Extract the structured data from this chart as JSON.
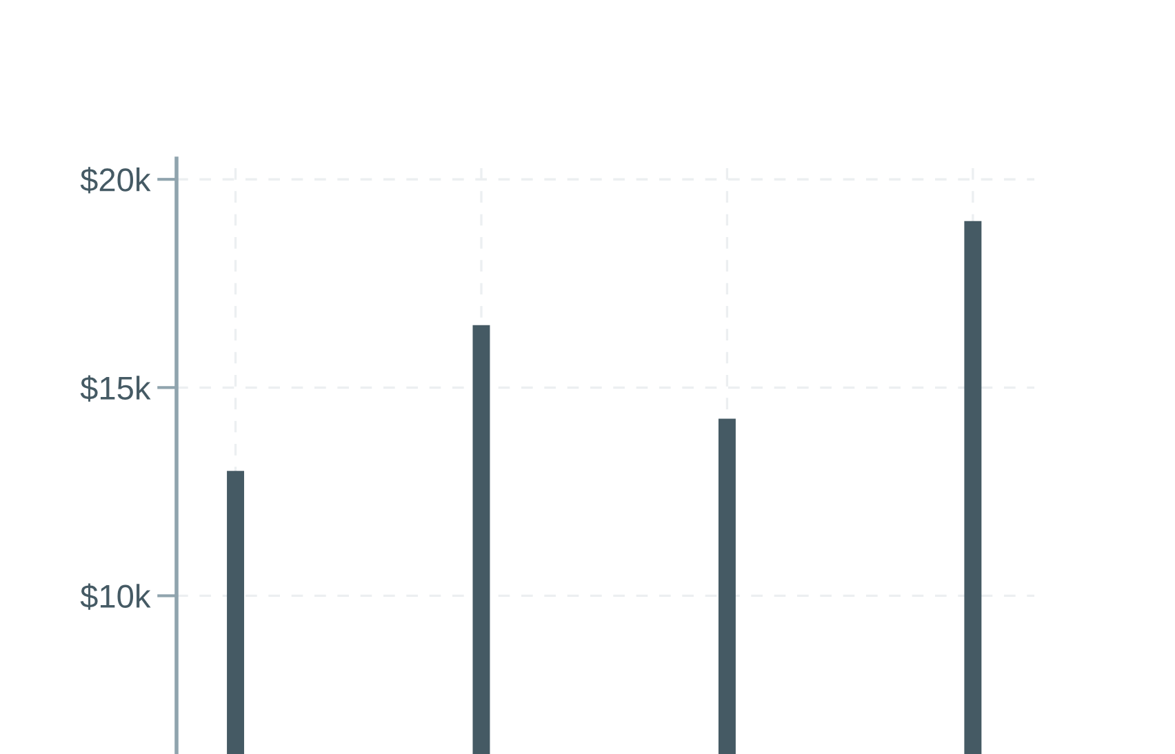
{
  "chart_data": {
    "type": "bar",
    "categories": [
      null,
      null,
      null,
      null
    ],
    "values": [
      13000,
      16500,
      14250,
      19000
    ],
    "color": "#455a64",
    "ylim": [
      6200,
      20500
    ],
    "yticks": [
      {
        "value": 10000,
        "label": "$10k"
      },
      {
        "value": 15000,
        "label": "$15k"
      },
      {
        "value": 20000,
        "label": "$20k"
      }
    ],
    "grid": true,
    "tick_labels": "y"
  }
}
